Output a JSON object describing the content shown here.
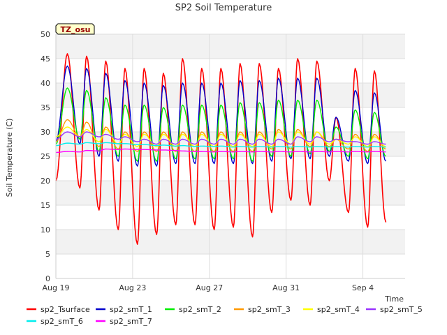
{
  "chart_data": {
    "type": "line",
    "title": "SP2 Soil Temperature",
    "xlabel": "Time",
    "ylabel": "Soil Temperature (C)",
    "ylim": [
      0,
      50
    ],
    "yticks": [
      0,
      5,
      10,
      15,
      20,
      25,
      30,
      35,
      40,
      45,
      50
    ],
    "xlim_days": [
      0,
      18.2
    ],
    "xticks": [
      {
        "day": 0,
        "label": "Aug 19"
      },
      {
        "day": 4,
        "label": "Aug 23"
      },
      {
        "day": 8,
        "label": "Aug 27"
      },
      {
        "day": 12,
        "label": "Aug 31"
      },
      {
        "day": 16,
        "label": "Sep 4"
      }
    ],
    "annotation": "TZ_osu",
    "grid": true,
    "legend_position": "bottom",
    "series": [
      {
        "name": "sp2_Tsurface",
        "color": "#ff0000",
        "start": 20,
        "peaks": [
          46,
          45.5,
          44.5,
          43,
          43,
          42,
          45,
          43,
          43,
          44,
          44,
          43,
          45,
          44.5,
          33,
          43,
          42.5
        ],
        "troughs": [
          18.5,
          14,
          10,
          7,
          9,
          11,
          11,
          10,
          10.5,
          8.5,
          13.5,
          16,
          15,
          20,
          13.5,
          10.5,
          11.5
        ]
      },
      {
        "name": "sp2_smT_1",
        "color": "#0000cc",
        "start": 28,
        "peaks": [
          43.5,
          43,
          42,
          40.5,
          40,
          39.5,
          40,
          40,
          40,
          40.5,
          40.5,
          41,
          41,
          41,
          33,
          38.5,
          38
        ],
        "troughs": [
          27.5,
          25,
          24,
          23,
          23,
          23.5,
          23.5,
          23.5,
          23.5,
          23.5,
          24,
          24.5,
          24.5,
          25,
          24,
          23.5,
          24
        ]
      },
      {
        "name": "sp2_smT_2",
        "color": "#00ee00",
        "start": 27.5,
        "peaks": [
          39,
          38.5,
          37,
          35.5,
          35.5,
          35,
          35.5,
          35.5,
          35.5,
          36,
          36,
          36.5,
          36.5,
          36.5,
          31,
          34.5,
          34
        ],
        "troughs": [
          28.5,
          26,
          25,
          24,
          24,
          24.5,
          24.5,
          24.5,
          24.5,
          24,
          25,
          25,
          25.5,
          26,
          25,
          24.5,
          25
        ]
      },
      {
        "name": "sp2_smT_3",
        "color": "#ff9900",
        "start": 28,
        "peaks": [
          32.5,
          32,
          31,
          30,
          30,
          30,
          30,
          30,
          30,
          30,
          30,
          30.5,
          30.5,
          30,
          28.5,
          29.5,
          29.5
        ],
        "troughs": [
          29,
          27,
          26.5,
          26,
          26,
          26,
          26,
          26,
          26,
          26,
          26.5,
          26.5,
          27,
          27,
          26.5,
          26,
          26.5
        ]
      },
      {
        "name": "sp2_smT_4",
        "color": "#ffff00",
        "start": 29,
        "peaks": [
          31,
          30.5,
          30.5,
          29.5,
          29.5,
          29.5,
          29.5,
          29.5,
          29.5,
          29.5,
          29.5,
          30,
          30,
          30,
          28.5,
          29,
          29
        ],
        "troughs": [
          29,
          28,
          27.5,
          27,
          27,
          27,
          27,
          27,
          27,
          27,
          27,
          27.5,
          27.5,
          27.5,
          27.5,
          27,
          27
        ]
      },
      {
        "name": "sp2_smT_5",
        "color": "#9933ff",
        "start": 28.5,
        "peaks": [
          30,
          30,
          29.5,
          29,
          28.5,
          28.5,
          28.5,
          28.5,
          28.5,
          28.5,
          28.5,
          28.5,
          29,
          29,
          28.5,
          28,
          28
        ],
        "troughs": [
          29,
          29,
          28.5,
          28,
          27.5,
          27.5,
          27.5,
          27.5,
          27.5,
          27.5,
          27.5,
          27.5,
          28,
          28,
          28,
          27.5,
          27.5
        ]
      },
      {
        "name": "sp2_smT_6",
        "color": "#00eeee",
        "start": 27.2,
        "peaks": [
          27.7,
          27.8,
          27.8,
          27.6,
          27.4,
          27.3,
          27.2,
          27.1,
          27.1,
          27.0,
          27.0,
          27.0,
          27.0,
          27.0,
          27.0,
          27.0,
          27.0
        ],
        "troughs": [
          27.5,
          27.6,
          27.6,
          27.4,
          27.2,
          27.1,
          27.0,
          27.0,
          26.9,
          26.9,
          26.9,
          26.9,
          26.9,
          26.9,
          26.9,
          26.9,
          26.9
        ]
      },
      {
        "name": "sp2_smT_7",
        "color": "#ff00ff",
        "start": 25.8,
        "peaks": [
          26.0,
          26.2,
          26.5,
          26.5,
          26.4,
          26.3,
          26.1,
          26.0,
          26.0,
          26.0,
          26.0,
          26.0,
          26.0,
          26.0,
          26.0,
          26.0,
          26.0
        ],
        "troughs": [
          25.9,
          26.1,
          26.4,
          26.4,
          26.3,
          26.2,
          26.0,
          25.9,
          25.9,
          25.9,
          25.9,
          25.9,
          25.9,
          25.9,
          25.9,
          25.9,
          25.9
        ]
      }
    ]
  }
}
